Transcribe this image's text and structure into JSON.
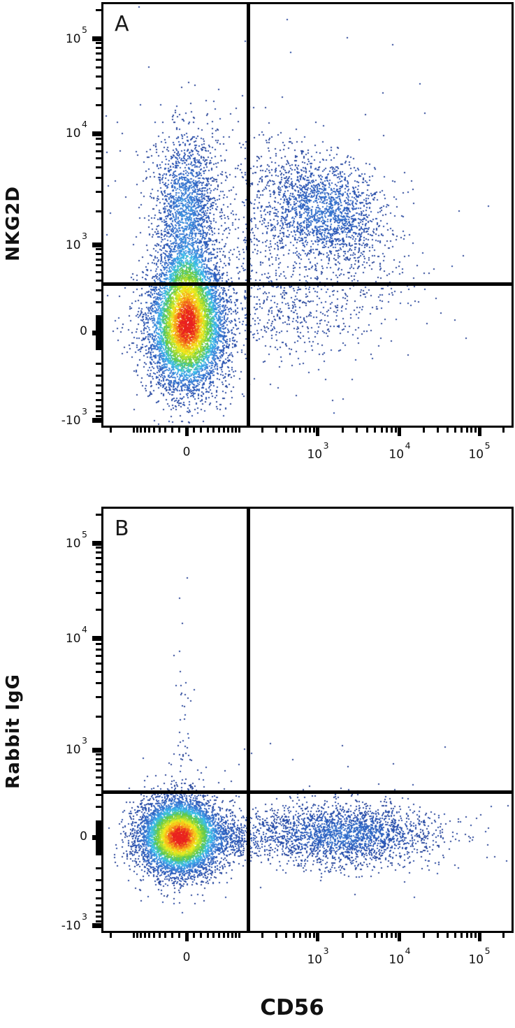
{
  "chart_data": {
    "type": "density_scatter",
    "technique": "flow cytometry quadrant dot plot, two panels sharing x axis",
    "x_axis": {
      "title": "CD56",
      "scale": "logicle",
      "major_ticks": [
        {
          "v": 0,
          "base": "0",
          "exp": ""
        },
        {
          "v": 1000,
          "base": "10",
          "exp": "3"
        },
        {
          "v": 10000,
          "base": "10",
          "exp": "4"
        },
        {
          "v": 100000,
          "base": "10",
          "exp": "5"
        }
      ],
      "calibration": {
        "zero": 0.2068,
        "d3": 0.3186,
        "d4": 0.5169,
        "d5": 0.7102,
        "a": 46.7
      }
    },
    "y_axis": {
      "scale": "logicle",
      "major_ticks": [
        {
          "v": -1000,
          "base": "-10",
          "exp": "3"
        },
        {
          "v": 0,
          "base": "0",
          "exp": ""
        },
        {
          "v": 1000,
          "base": "10",
          "exp": "3"
        },
        {
          "v": 10000,
          "base": "10",
          "exp": "4"
        },
        {
          "v": 100000,
          "base": "10",
          "exp": "5"
        }
      ],
      "calibration": {
        "zero": 0.223,
        "d3": 0.206,
        "d4": 0.4676,
        "d5": 0.6907,
        "a": 249
      }
    },
    "dot_size": 2,
    "gamma": 0.85,
    "jitter": 0.14,
    "gate_color": "#000000",
    "colormap": [
      {
        "t": 0.0,
        "c": "#2a4496"
      },
      {
        "t": 0.18,
        "c": "#2b57b7"
      },
      {
        "t": 0.34,
        "c": "#3f86dc"
      },
      {
        "t": 0.46,
        "c": "#3cc3ef"
      },
      {
        "t": 0.6,
        "c": "#5ec94b"
      },
      {
        "t": 0.72,
        "c": "#b8e02f"
      },
      {
        "t": 0.8,
        "c": "#f5ee1d"
      },
      {
        "t": 0.9,
        "c": "#f79a1b"
      },
      {
        "t": 1.0,
        "c": "#e9211f"
      }
    ],
    "panels": [
      {
        "panel_label": "A",
        "y_axis_title": "NKG2D",
        "gate": {
          "x_frac": 0.3525,
          "y_frac": 0.657
        },
        "populations": [
          {
            "name": "CD56- NKG2D- main cluster (red core at ~0,0)",
            "cx": 0.2034,
            "cy": 0.766,
            "sx": 0.048,
            "sy": 0.076,
            "rho": 0,
            "n": 6500
          },
          {
            "name": "gate neck above main cluster",
            "cx": 0.203,
            "cy": 0.65,
            "sx": 0.034,
            "sy": 0.05,
            "rho": 0,
            "n": 800
          },
          {
            "name": "CD56- NKG2D+ column (~0, ~2x10^3)",
            "cx": 0.2,
            "cy": 0.482,
            "sx": 0.038,
            "sy": 0.093,
            "rho": 0,
            "n": 1700
          },
          {
            "name": "CD56+ NKG2D+ cluster (~10^3, ~2x10^3)",
            "cx": 0.542,
            "cy": 0.487,
            "sx": 0.076,
            "sy": 0.066,
            "rho": 0.35,
            "n": 1800
          },
          {
            "name": "bridge scatter between positives",
            "cx": 0.4,
            "cy": 0.52,
            "sx": 0.13,
            "sy": 0.1,
            "rho": 0.2,
            "n": 650
          },
          {
            "name": "CD56+ NKG2D- diagonal tail",
            "cx": 0.46,
            "cy": 0.73,
            "sx": 0.14,
            "sy": 0.055,
            "rho": -0.15,
            "n": 520
          },
          {
            "name": "sparse background",
            "cx": 0.35,
            "cy": 0.55,
            "sx": 0.25,
            "sy": 0.22,
            "rho": 0,
            "n": 220
          }
        ]
      },
      {
        "panel_label": "B",
        "y_axis_title": "Rabbit IgG",
        "gate": {
          "x_frac": 0.3525,
          "y_frac": 0.664
        },
        "populations": [
          {
            "name": "CD56- IgG- main cluster (red core at ~0,0)",
            "cx": 0.185,
            "cy": 0.776,
            "sx": 0.05,
            "sy": 0.046,
            "rho": 0,
            "n": 6500
          },
          {
            "name": "neck toward CD56+ band",
            "cx": 0.31,
            "cy": 0.778,
            "sx": 0.055,
            "sy": 0.03,
            "rho": 0,
            "n": 380
          },
          {
            "name": "CD56+ IgG- horizontal band (~10^3, ~0)",
            "cx": 0.585,
            "cy": 0.77,
            "sx": 0.115,
            "sy": 0.036,
            "rho": 0,
            "n": 2400
          },
          {
            "name": "stray vertical column above main",
            "cx": 0.195,
            "cy": 0.52,
            "sx": 0.013,
            "sy": 0.17,
            "rho": 0,
            "n": 55
          },
          {
            "name": "sparse background",
            "cx": 0.45,
            "cy": 0.74,
            "sx": 0.2,
            "sy": 0.1,
            "rho": 0,
            "n": 70
          }
        ]
      }
    ]
  }
}
